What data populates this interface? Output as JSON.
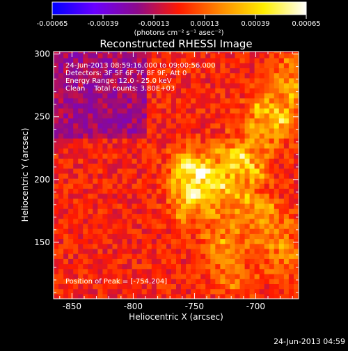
{
  "colorbar": {
    "tick_labels": [
      "-0.00065",
      "-0.00039",
      "-0.00013",
      "0.00013",
      "0.00039",
      "0.00065"
    ],
    "unit_label": "(photons cm⁻² s⁻¹ asec⁻²)",
    "range": [
      -0.00065,
      0.00065
    ]
  },
  "colors": {
    "scale": [
      "#0000ff",
      "#6a00ff",
      "#8c0a8c",
      "#ff1a00",
      "#ff8c00",
      "#ffee00",
      "#ffffff"
    ],
    "background": "#000000",
    "axis": "#ffffff"
  },
  "footer": {
    "timestamp": "24-Jun-2013 04:59"
  },
  "chart_data": {
    "type": "heatmap",
    "title": "Reconstructed RHESSI Image",
    "xlabel": "Heliocentric X (arcsec)",
    "ylabel": "Heliocentric Y (arcsec)",
    "xlim": [
      -865,
      -665
    ],
    "ylim": [
      105,
      302
    ],
    "x_ticks": [
      -850,
      -800,
      -750,
      -700
    ],
    "y_ticks": [
      150,
      200,
      250,
      300
    ],
    "grid": false,
    "annotations": [
      "24-Jun-2013 08:59:16.000 to 09:00:56.000",
      "Detectors: 3F 5F 6F 7F 8F 9F, Att 0",
      "Energy Range: 12.0 - 25.0 keV",
      "Clean    Total counts: 3.80E+03"
    ],
    "peak_label": "Position of Peak = [-754,204]",
    "peak": [
      -754,
      204
    ],
    "intensity_sources": [
      {
        "x": -754,
        "y": 204,
        "peak": 0.00065,
        "sigma": 12
      },
      {
        "x": -738,
        "y": 190,
        "peak": 0.00048,
        "sigma": 16
      },
      {
        "x": -712,
        "y": 212,
        "peak": 0.0005,
        "sigma": 14
      },
      {
        "x": -690,
        "y": 248,
        "peak": 0.00052,
        "sigma": 14
      },
      {
        "x": -672,
        "y": 278,
        "peak": 0.0004,
        "sigma": 12
      },
      {
        "x": -700,
        "y": 168,
        "peak": 0.00038,
        "sigma": 14
      },
      {
        "x": -678,
        "y": 140,
        "peak": 0.00032,
        "sigma": 14
      },
      {
        "x": -730,
        "y": 145,
        "peak": 0.00028,
        "sigma": 12
      },
      {
        "x": -760,
        "y": 175,
        "peak": 0.00026,
        "sigma": 10
      },
      {
        "x": -720,
        "y": 120,
        "peak": 0.00024,
        "sigma": 12
      }
    ]
  }
}
